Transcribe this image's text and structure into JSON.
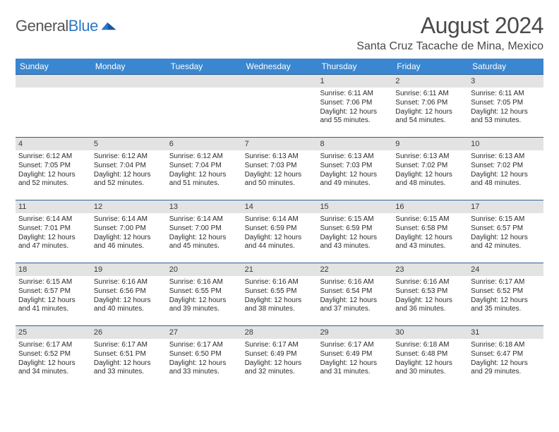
{
  "brand": {
    "name_a": "General",
    "name_b": "Blue"
  },
  "title": "August 2024",
  "location": "Santa Cruz Tacache de Mina, Mexico",
  "colors": {
    "header_bg": "#3a86d0",
    "header_text": "#ffffff",
    "band_bg": "#e3e3e3",
    "rule": "#2e5f94",
    "brand_gray": "#555555",
    "brand_blue": "#2e78c2",
    "body_text": "#2b2b2b"
  },
  "dow": [
    "Sunday",
    "Monday",
    "Tuesday",
    "Wednesday",
    "Thursday",
    "Friday",
    "Saturday"
  ],
  "weeks": [
    [
      null,
      null,
      null,
      null,
      {
        "n": "1",
        "sr": "6:11 AM",
        "ss": "7:06 PM",
        "dl": "12 hours and 55 minutes."
      },
      {
        "n": "2",
        "sr": "6:11 AM",
        "ss": "7:06 PM",
        "dl": "12 hours and 54 minutes."
      },
      {
        "n": "3",
        "sr": "6:11 AM",
        "ss": "7:05 PM",
        "dl": "12 hours and 53 minutes."
      }
    ],
    [
      {
        "n": "4",
        "sr": "6:12 AM",
        "ss": "7:05 PM",
        "dl": "12 hours and 52 minutes."
      },
      {
        "n": "5",
        "sr": "6:12 AM",
        "ss": "7:04 PM",
        "dl": "12 hours and 52 minutes."
      },
      {
        "n": "6",
        "sr": "6:12 AM",
        "ss": "7:04 PM",
        "dl": "12 hours and 51 minutes."
      },
      {
        "n": "7",
        "sr": "6:13 AM",
        "ss": "7:03 PM",
        "dl": "12 hours and 50 minutes."
      },
      {
        "n": "8",
        "sr": "6:13 AM",
        "ss": "7:03 PM",
        "dl": "12 hours and 49 minutes."
      },
      {
        "n": "9",
        "sr": "6:13 AM",
        "ss": "7:02 PM",
        "dl": "12 hours and 48 minutes."
      },
      {
        "n": "10",
        "sr": "6:13 AM",
        "ss": "7:02 PM",
        "dl": "12 hours and 48 minutes."
      }
    ],
    [
      {
        "n": "11",
        "sr": "6:14 AM",
        "ss": "7:01 PM",
        "dl": "12 hours and 47 minutes."
      },
      {
        "n": "12",
        "sr": "6:14 AM",
        "ss": "7:00 PM",
        "dl": "12 hours and 46 minutes."
      },
      {
        "n": "13",
        "sr": "6:14 AM",
        "ss": "7:00 PM",
        "dl": "12 hours and 45 minutes."
      },
      {
        "n": "14",
        "sr": "6:14 AM",
        "ss": "6:59 PM",
        "dl": "12 hours and 44 minutes."
      },
      {
        "n": "15",
        "sr": "6:15 AM",
        "ss": "6:59 PM",
        "dl": "12 hours and 43 minutes."
      },
      {
        "n": "16",
        "sr": "6:15 AM",
        "ss": "6:58 PM",
        "dl": "12 hours and 43 minutes."
      },
      {
        "n": "17",
        "sr": "6:15 AM",
        "ss": "6:57 PM",
        "dl": "12 hours and 42 minutes."
      }
    ],
    [
      {
        "n": "18",
        "sr": "6:15 AM",
        "ss": "6:57 PM",
        "dl": "12 hours and 41 minutes."
      },
      {
        "n": "19",
        "sr": "6:16 AM",
        "ss": "6:56 PM",
        "dl": "12 hours and 40 minutes."
      },
      {
        "n": "20",
        "sr": "6:16 AM",
        "ss": "6:55 PM",
        "dl": "12 hours and 39 minutes."
      },
      {
        "n": "21",
        "sr": "6:16 AM",
        "ss": "6:55 PM",
        "dl": "12 hours and 38 minutes."
      },
      {
        "n": "22",
        "sr": "6:16 AM",
        "ss": "6:54 PM",
        "dl": "12 hours and 37 minutes."
      },
      {
        "n": "23",
        "sr": "6:16 AM",
        "ss": "6:53 PM",
        "dl": "12 hours and 36 minutes."
      },
      {
        "n": "24",
        "sr": "6:17 AM",
        "ss": "6:52 PM",
        "dl": "12 hours and 35 minutes."
      }
    ],
    [
      {
        "n": "25",
        "sr": "6:17 AM",
        "ss": "6:52 PM",
        "dl": "12 hours and 34 minutes."
      },
      {
        "n": "26",
        "sr": "6:17 AM",
        "ss": "6:51 PM",
        "dl": "12 hours and 33 minutes."
      },
      {
        "n": "27",
        "sr": "6:17 AM",
        "ss": "6:50 PM",
        "dl": "12 hours and 33 minutes."
      },
      {
        "n": "28",
        "sr": "6:17 AM",
        "ss": "6:49 PM",
        "dl": "12 hours and 32 minutes."
      },
      {
        "n": "29",
        "sr": "6:17 AM",
        "ss": "6:49 PM",
        "dl": "12 hours and 31 minutes."
      },
      {
        "n": "30",
        "sr": "6:18 AM",
        "ss": "6:48 PM",
        "dl": "12 hours and 30 minutes."
      },
      {
        "n": "31",
        "sr": "6:18 AM",
        "ss": "6:47 PM",
        "dl": "12 hours and 29 minutes."
      }
    ]
  ],
  "labels": {
    "sunrise": "Sunrise:",
    "sunset": "Sunset:",
    "daylight": "Daylight:"
  }
}
